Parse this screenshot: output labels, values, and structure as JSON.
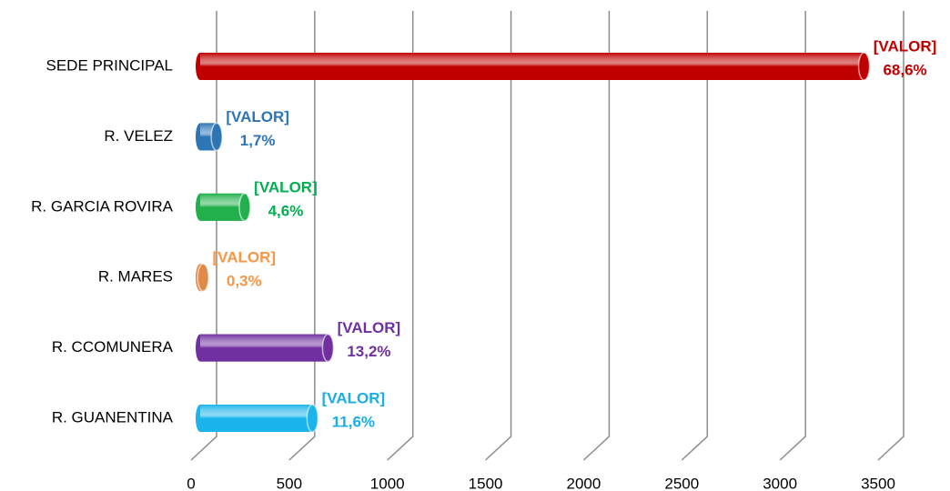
{
  "chart_data": {
    "type": "bar",
    "orientation": "horizontal",
    "categories": [
      "SEDE PRINCIPAL",
      "R. VELEZ",
      "R. GARCIA ROVIRA",
      "R. MARES",
      "R. CCOMUNERA",
      "R. GUANENTINA"
    ],
    "values": [
      3382,
      84,
      227,
      15,
      651,
      572
    ],
    "value_labels": [
      "[VALOR]",
      "[VALOR]",
      "[VALOR]",
      "[VALOR]",
      "[VALOR]",
      "[VALOR]"
    ],
    "percent_labels": [
      "68,6%",
      "1,7%",
      "4,6%",
      "0,3%",
      "13,2%",
      "11,6%"
    ],
    "colors": [
      "#c00000",
      "#2e75b6",
      "#21b04b",
      "#e08a4a",
      "#7030a0",
      "#1cb4ec"
    ],
    "label_colors": [
      "#c00000",
      "#2e75b6",
      "#00b050",
      "#f79646",
      "#7030a0",
      "#1cade4"
    ],
    "xlim": [
      0,
      3500
    ],
    "xticks": [
      0,
      500,
      1000,
      1500,
      2000,
      2500,
      3000,
      3500
    ],
    "grid": true
  }
}
